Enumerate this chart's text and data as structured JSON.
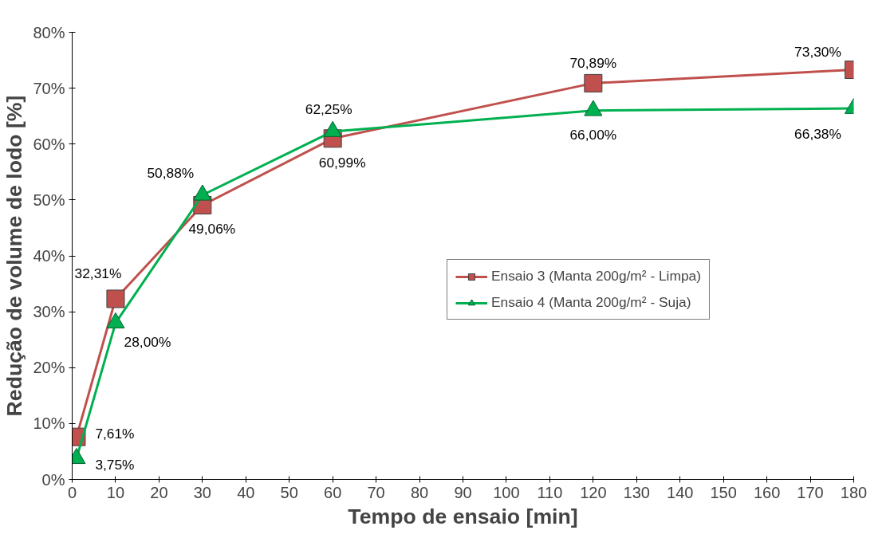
{
  "chart_data": {
    "type": "line",
    "xlabel": "Tempo de ensaio [min]",
    "ylabel": "Redução de volume de lodo [%]",
    "x": [
      1,
      10,
      30,
      60,
      120,
      180
    ],
    "xlim": [
      0,
      180
    ],
    "xticks": [
      0,
      10,
      20,
      30,
      40,
      50,
      60,
      70,
      80,
      90,
      100,
      110,
      120,
      130,
      140,
      150,
      160,
      170,
      180
    ],
    "ylim": [
      0,
      80
    ],
    "yticks": [
      {
        "value": 0,
        "label": "0%"
      },
      {
        "value": 10,
        "label": "10%"
      },
      {
        "value": 20,
        "label": "20%"
      },
      {
        "value": 30,
        "label": "30%"
      },
      {
        "value": 40,
        "label": "40%"
      },
      {
        "value": 50,
        "label": "50%"
      },
      {
        "value": 60,
        "label": "60%"
      },
      {
        "value": 70,
        "label": "70%"
      },
      {
        "value": 80,
        "label": "80%"
      }
    ],
    "grid": false,
    "legend": "right",
    "series": [
      {
        "name": "Ensaio 3 (Manta 200g/m² - Limpa)",
        "color": "#c0504d",
        "marker": "square",
        "values": [
          7.61,
          32.31,
          49.06,
          60.99,
          70.89,
          73.3
        ],
        "value_labels": [
          "7,61%",
          "32,31%",
          "49,06%",
          "60,99%",
          "70,89%",
          "73,30%"
        ]
      },
      {
        "name": "Ensaio 4 (Manta 200g/m² - Suja)",
        "color": "#00b050",
        "marker": "triangle",
        "values": [
          3.75,
          28.0,
          50.88,
          62.25,
          66.0,
          66.38
        ],
        "value_labels": [
          "3,75%",
          "28,00%",
          "50,88%",
          "62,25%",
          "66,00%",
          "66,38%"
        ]
      }
    ]
  }
}
